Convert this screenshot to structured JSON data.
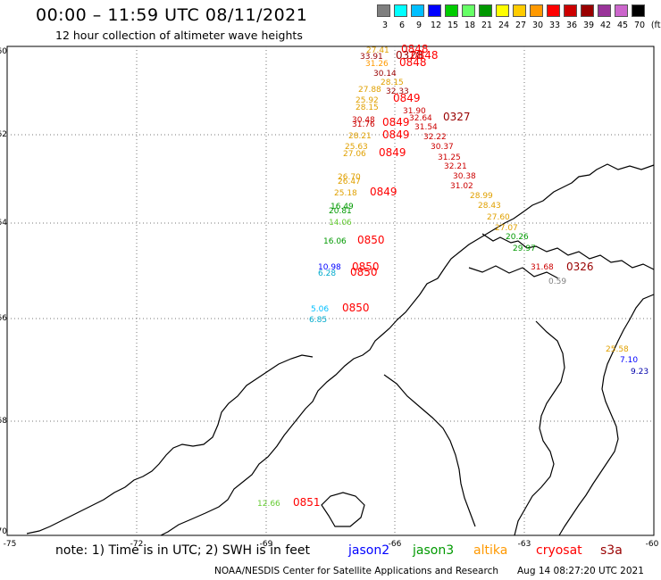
{
  "title": "00:00 – 11:59 UTC 08/11/2021",
  "subtitle": "12 hour collection of altimeter wave heights",
  "legend": {
    "colors": [
      "#7f7f7f",
      "#00ffff",
      "#00bfff",
      "#0000ff",
      "#00cc00",
      "#66ff66",
      "#009900",
      "#ffff00",
      "#ffcc00",
      "#ff9900",
      "#ff0000",
      "#cc0000",
      "#990000",
      "#993399",
      "#cc66cc",
      "#000000"
    ],
    "ticks": [
      "3",
      "6",
      "9",
      "12",
      "15",
      "18",
      "21",
      "24",
      "27",
      "30",
      "33",
      "36",
      "39",
      "42",
      "45",
      "70"
    ],
    "unit": "(ft)"
  },
  "lat_labels": [
    "-60",
    "-62",
    "-64",
    "-66",
    "-68",
    "-70"
  ],
  "lon_labels": [
    "-75",
    "-72",
    "-69",
    "-66",
    "-63",
    "-60"
  ],
  "note": {
    "prefix": "note: 1) Time is in UTC; 2) SWH is in feet",
    "sat1": "jason2",
    "sat2": "jason3",
    "sat3": "altika",
    "sat4": "cryosat",
    "sat5": "s3a"
  },
  "credit": "NOAA/NESDIS Center for Satellite Applications and Research",
  "timestamp": "Aug 14 08:27:20 UTC 2021",
  "colors": {
    "jason2": "#0000ff",
    "jason3": "#009900",
    "altika": "#ff9900",
    "cryosat": "#ff0000",
    "s3a": "#990000"
  },
  "map_labels": [
    {
      "t": "27.41",
      "c": "#e0a000"
    },
    {
      "t": "0848",
      "c": "#ff0000"
    },
    {
      "t": "33.91",
      "c": "#990000"
    },
    {
      "t": "0328",
      "c": "#990000"
    },
    {
      "t": "0848",
      "c": "#ff0000"
    },
    {
      "t": "31.26",
      "c": "#ff9900"
    },
    {
      "t": "0848",
      "c": "#ff0000"
    },
    {
      "t": "30.14",
      "c": "#990000"
    },
    {
      "t": "28.15",
      "c": "#e0a000"
    },
    {
      "t": "27.88",
      "c": "#e0a000"
    },
    {
      "t": "32.33",
      "c": "#990000"
    },
    {
      "t": "25.92",
      "c": "#e0a000"
    },
    {
      "t": "0849",
      "c": "#ff0000"
    },
    {
      "t": "28.15",
      "c": "#e0a000"
    },
    {
      "t": "31.90",
      "c": "#cc0000"
    },
    {
      "t": "30.48",
      "c": "#cc0000"
    },
    {
      "t": "32.64",
      "c": "#cc0000"
    },
    {
      "t": "0327",
      "c": "#990000"
    },
    {
      "t": "31.76",
      "c": "#cc0000"
    },
    {
      "t": "0849",
      "c": "#ff0000"
    },
    {
      "t": "31.54",
      "c": "#cc0000"
    },
    {
      "t": "28.21",
      "c": "#e0a000"
    },
    {
      "t": "0849",
      "c": "#ff0000"
    },
    {
      "t": "32.22",
      "c": "#cc0000"
    },
    {
      "t": "25.63",
      "c": "#e0a000"
    },
    {
      "t": "30.37",
      "c": "#cc0000"
    },
    {
      "t": "27.06",
      "c": "#e0a000"
    },
    {
      "t": "0849",
      "c": "#ff0000"
    },
    {
      "t": "31.25",
      "c": "#cc0000"
    },
    {
      "t": "32.21",
      "c": "#cc0000"
    },
    {
      "t": "30.38",
      "c": "#cc0000"
    },
    {
      "t": "26.70",
      "c": "#e0a000"
    },
    {
      "t": "26.47",
      "c": "#e0a000"
    },
    {
      "t": "31.02",
      "c": "#cc0000"
    },
    {
      "t": "25.18",
      "c": "#e0a000"
    },
    {
      "t": "0849",
      "c": "#ff0000"
    },
    {
      "t": "28.99",
      "c": "#e0a000"
    },
    {
      "t": "16.49",
      "c": "#009900"
    },
    {
      "t": "28.43",
      "c": "#e0a000"
    },
    {
      "t": "20.81",
      "c": "#009900"
    },
    {
      "t": "14.06",
      "c": "#66cc33"
    },
    {
      "t": "27.60",
      "c": "#e0a000"
    },
    {
      "t": "27.07",
      "c": "#e0a000"
    },
    {
      "t": "16.06",
      "c": "#009900"
    },
    {
      "t": "0850",
      "c": "#ff0000"
    },
    {
      "t": "20.26",
      "c": "#009900"
    },
    {
      "t": "29.97",
      "c": "#009900"
    },
    {
      "t": "10.98",
      "c": "#0000ff"
    },
    {
      "t": "0850",
      "c": "#ff0000"
    },
    {
      "t": "6.28",
      "c": "#00aacc"
    },
    {
      "t": "0850",
      "c": "#ff0000"
    },
    {
      "t": "31.68",
      "c": "#cc0000"
    },
    {
      "t": "0326",
      "c": "#990000"
    },
    {
      "t": "0.59",
      "c": "#7f7f7f"
    },
    {
      "t": "5.06",
      "c": "#00bfff"
    },
    {
      "t": "0850",
      "c": "#ff0000"
    },
    {
      "t": "6.85",
      "c": "#00aacc"
    },
    {
      "t": "25.58",
      "c": "#e0a000"
    },
    {
      "t": "7.10",
      "c": "#0000ff"
    },
    {
      "t": "9.23",
      "c": "#0000aa"
    },
    {
      "t": "12.66",
      "c": "#66cc33"
    },
    {
      "t": "0851",
      "c": "#ff0000"
    }
  ]
}
